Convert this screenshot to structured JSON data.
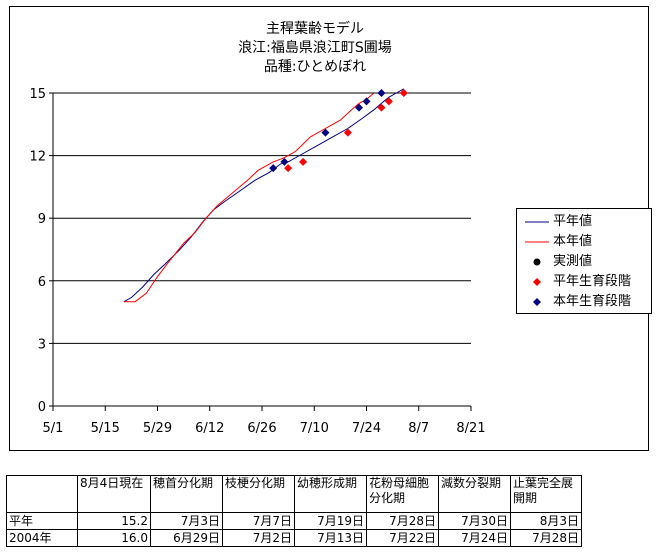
{
  "title_lines": [
    "主稈葉齢モデル",
    "浪江:福島県浪江町S圃場",
    "品種:ひとめぼれ"
  ],
  "legend": [
    {
      "label": "平年値",
      "symbol": "line",
      "color": "#000080"
    },
    {
      "label": "本年値",
      "symbol": "line",
      "color": "#ff0000"
    },
    {
      "label": "実測値",
      "symbol": "circle",
      "color": "#000000"
    },
    {
      "label": "平年生育段階",
      "symbol": "diamond",
      "color": "#ff0000"
    },
    {
      "label": "本年生育段階",
      "symbol": "diamond",
      "color": "#000080"
    }
  ],
  "chart_data": {
    "type": "line",
    "title": "主稈葉齢モデル",
    "subtitle": [
      "浪江:福島県浪江町S圃場",
      "品種:ひとめぼれ"
    ],
    "xlabel": "",
    "ylabel": "",
    "x_ticks": [
      "5/1",
      "5/15",
      "5/29",
      "6/12",
      "6/26",
      "7/10",
      "7/24",
      "8/7",
      "8/21"
    ],
    "x_range": [
      "5/1",
      "8/21"
    ],
    "y_ticks": [
      0,
      3,
      6,
      9,
      12,
      15
    ],
    "ylim": [
      0,
      15
    ],
    "grid": "horizontal",
    "legend_position": "right",
    "series": [
      {
        "name": "平年値",
        "color": "#000080",
        "style": "line",
        "points": [
          [
            "5/20",
            5.0
          ],
          [
            "5/22",
            5.2
          ],
          [
            "5/25",
            5.7
          ],
          [
            "5/28",
            6.3
          ],
          [
            "5/31",
            6.8
          ],
          [
            "6/4",
            7.5
          ],
          [
            "6/7",
            8.1
          ],
          [
            "6/10",
            8.8
          ],
          [
            "6/13",
            9.4
          ],
          [
            "6/16",
            9.8
          ],
          [
            "6/20",
            10.3
          ],
          [
            "6/24",
            10.8
          ],
          [
            "6/28",
            11.2
          ],
          [
            "7/1",
            11.6
          ],
          [
            "7/3",
            11.7
          ],
          [
            "7/7",
            12.1
          ],
          [
            "7/11",
            12.5
          ],
          [
            "7/15",
            12.9
          ],
          [
            "7/19",
            13.3
          ],
          [
            "7/23",
            13.8
          ],
          [
            "7/26",
            14.2
          ],
          [
            "7/28",
            14.5
          ],
          [
            "7/30",
            14.8
          ],
          [
            "8/1",
            15.0
          ],
          [
            "8/3",
            15.2
          ]
        ]
      },
      {
        "name": "本年値",
        "color": "#ff0000",
        "style": "line",
        "points": [
          [
            "5/20",
            5.0
          ],
          [
            "5/23",
            5.0
          ],
          [
            "5/26",
            5.4
          ],
          [
            "5/29",
            6.2
          ],
          [
            "6/1",
            6.9
          ],
          [
            "6/5",
            7.8
          ],
          [
            "6/8",
            8.3
          ],
          [
            "6/11",
            9.0
          ],
          [
            "6/14",
            9.6
          ],
          [
            "6/18",
            10.2
          ],
          [
            "6/22",
            10.8
          ],
          [
            "6/25",
            11.3
          ],
          [
            "6/29",
            11.7
          ],
          [
            "7/2",
            11.9
          ],
          [
            "7/5",
            12.2
          ],
          [
            "7/9",
            12.9
          ],
          [
            "7/13",
            13.3
          ],
          [
            "7/17",
            13.7
          ],
          [
            "7/20",
            14.2
          ],
          [
            "7/22",
            14.5
          ],
          [
            "7/24",
            14.7
          ],
          [
            "7/26",
            15.0
          ]
        ]
      },
      {
        "name": "実測値",
        "color": "#000000",
        "style": "circle",
        "points": []
      },
      {
        "name": "平年生育段階",
        "color": "#ff0000",
        "style": "diamond",
        "points": [
          [
            "7/3",
            11.4
          ],
          [
            "7/7",
            11.7
          ],
          [
            "7/19",
            13.1
          ],
          [
            "7/28",
            14.3
          ],
          [
            "7/30",
            14.6
          ],
          [
            "8/3",
            15.0
          ]
        ]
      },
      {
        "name": "本年生育段階",
        "color": "#000080",
        "style": "diamond",
        "points": [
          [
            "6/29",
            11.4
          ],
          [
            "7/2",
            11.7
          ],
          [
            "7/13",
            13.1
          ],
          [
            "7/22",
            14.3
          ],
          [
            "7/24",
            14.6
          ],
          [
            "7/28",
            15.0
          ]
        ]
      }
    ]
  },
  "stage_table": {
    "headers": [
      "",
      "8月4日現在",
      "穂首分化期",
      "枝梗分化期",
      "幼穂形成期",
      "花粉母細胞分化期",
      "減数分裂期",
      "止葉完全展開期"
    ],
    "rows": [
      [
        "平年",
        "15.2",
        "7月3日",
        "7月7日",
        "7月19日",
        "7月28日",
        "7月30日",
        "8月3日"
      ],
      [
        "2004年",
        "16.0",
        "6月29日",
        "7月2日",
        "7月13日",
        "7月22日",
        "7月24日",
        "7月28日"
      ]
    ]
  }
}
